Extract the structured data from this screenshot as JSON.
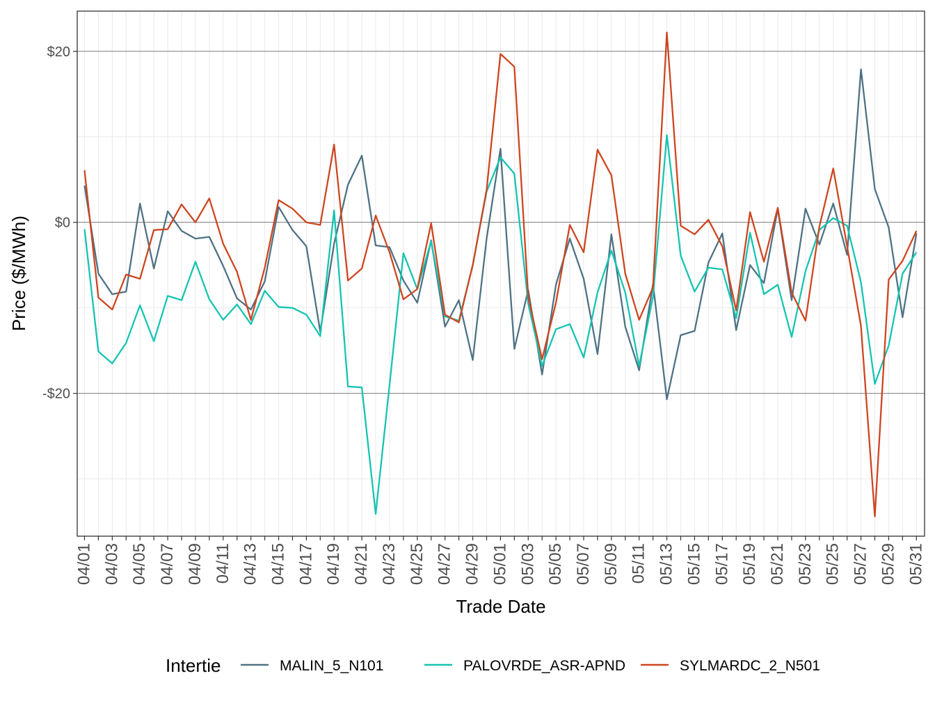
{
  "chart_data": {
    "type": "line",
    "xlabel": "Trade Date",
    "ylabel": "Price ($/MWh)",
    "x_start": "04/01",
    "x_ticks": [
      "04/01",
      "04/03",
      "04/05",
      "04/07",
      "04/09",
      "04/11",
      "04/13",
      "04/15",
      "04/17",
      "04/19",
      "04/21",
      "04/23",
      "04/25",
      "04/27",
      "04/29",
      "05/01",
      "05/03",
      "05/05",
      "05/07",
      "05/09",
      "05/11",
      "05/13",
      "05/15",
      "05/17",
      "05/19",
      "05/21",
      "05/23",
      "05/25",
      "05/27",
      "05/29",
      "05/31"
    ],
    "y_ticks": [
      {
        "value": 20,
        "label": "$20"
      },
      {
        "value": 0,
        "label": "$0"
      },
      {
        "value": -20,
        "label": "-$20"
      }
    ],
    "ylim": [
      -36.7,
      24.7
    ],
    "grid": true,
    "legend_title": "Intertie",
    "legend_position": "bottom",
    "series": [
      {
        "name": "MALIN_5_N101",
        "color": "#4e7283",
        "values": [
          4.3,
          -6.0,
          -8.4,
          -8.1,
          2.2,
          -5.4,
          1.3,
          -1.0,
          -1.9,
          -1.7,
          -5.1,
          -8.9,
          -10.2,
          -6.9,
          1.8,
          -0.9,
          -2.8,
          -12.8,
          -2.5,
          4.4,
          7.8,
          -2.7,
          -2.9,
          -6.8,
          -9.4,
          -2.1,
          -12.2,
          -9.1,
          -16.1,
          -1.9,
          8.6,
          -14.8,
          -7.9,
          -17.8,
          -7.3,
          -1.9,
          -6.6,
          -15.4,
          -1.4,
          -12.2,
          -17.3,
          -7.2,
          -20.7,
          -13.2,
          -12.7,
          -4.7,
          -1.3,
          -12.6,
          -5.0,
          -7.1,
          1.6,
          -9.1,
          1.6,
          -2.6,
          2.2,
          -3.8,
          17.9,
          3.9,
          -0.6,
          -11.1,
          -1.3
        ]
      },
      {
        "name": "PALOVRDE_ASR-APND",
        "color": "#15c4b1",
        "values": [
          -0.8,
          -15.1,
          -16.5,
          -14.1,
          -9.7,
          -13.9,
          -8.6,
          -9.1,
          -4.6,
          -9.0,
          -11.4,
          -9.6,
          -11.9,
          -8.0,
          -9.9,
          -10.0,
          -10.8,
          -13.3,
          1.4,
          -19.2,
          -19.3,
          -34.1,
          -19.0,
          -3.6,
          -7.8,
          -2.2,
          -11.0,
          -11.5,
          -5.0,
          3.6,
          7.6,
          5.7,
          -9.5,
          -16.8,
          -12.5,
          -11.9,
          -15.8,
          -8.2,
          -3.3,
          -8.2,
          -16.8,
          -8.7,
          10.2,
          -3.9,
          -8.1,
          -5.3,
          -5.5,
          -11.2,
          -1.2,
          -8.4,
          -7.3,
          -13.4,
          -5.7,
          -0.9,
          0.5,
          -0.4,
          -7.0,
          -18.9,
          -14.4,
          -6.0,
          -3.5
        ]
      },
      {
        "name": "SYLMARDC_2_N501",
        "color": "#ce4520",
        "values": [
          6.1,
          -8.8,
          -10.2,
          -6.1,
          -6.6,
          -0.9,
          -0.8,
          2.1,
          0.0,
          2.8,
          -2.5,
          -5.8,
          -11.4,
          -5.3,
          2.6,
          1.6,
          0.0,
          -0.3,
          9.1,
          -6.8,
          -5.4,
          0.8,
          -3.5,
          -9.0,
          -7.8,
          -0.1,
          -10.8,
          -11.7,
          -5.0,
          3.8,
          19.7,
          18.2,
          -8.7,
          -16.0,
          -9.4,
          -0.3,
          -3.5,
          8.5,
          5.5,
          -6.0,
          -11.4,
          -7.6,
          22.2,
          -0.4,
          -1.4,
          0.3,
          -2.8,
          -10.3,
          1.2,
          -4.6,
          1.7,
          -8.2,
          -11.5,
          -0.5,
          6.3,
          -2.8,
          -12.1,
          -34.4,
          -6.7,
          -4.5,
          -1.0
        ]
      }
    ]
  }
}
